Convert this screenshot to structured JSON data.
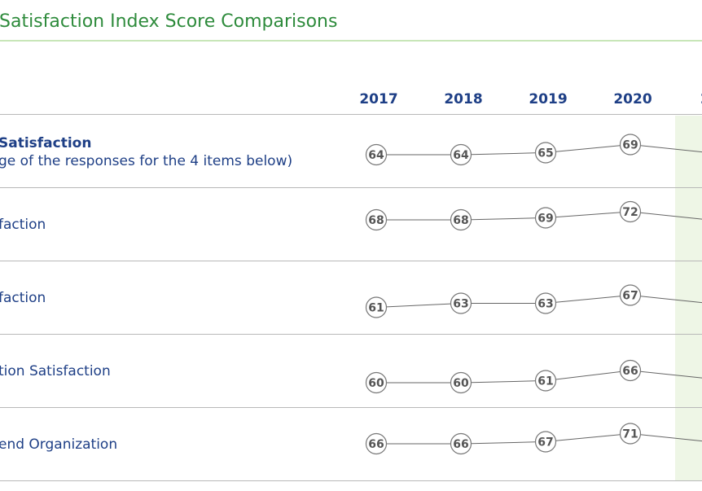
{
  "title": "Satisfaction Index Score Comparisons",
  "columns": [
    "2017",
    "2018",
    "2019",
    "2020",
    "2"
  ],
  "rows": [
    {
      "label": "Satisfaction",
      "sublabel": "ge of the responses for the 4 items below)"
    },
    {
      "label": "faction"
    },
    {
      "label": "faction"
    },
    {
      "label": "tion Satisfaction"
    },
    {
      "label": "end Organization"
    }
  ],
  "colors": {
    "title": "#2e8b3c",
    "label": "#1e3f86",
    "highlight": "#eef6e6",
    "node_text": "#555555"
  },
  "chart_data": {
    "type": "line",
    "title": "Satisfaction Index Score Comparisons",
    "x": [
      "2017",
      "2018",
      "2019",
      "2020"
    ],
    "y_range": [
      55,
      75
    ],
    "series": [
      {
        "name": "Satisfaction",
        "values": [
          64,
          64,
          65,
          69
        ]
      },
      {
        "name": "faction",
        "values": [
          68,
          68,
          69,
          72
        ]
      },
      {
        "name": "faction",
        "values": [
          61,
          63,
          63,
          67
        ]
      },
      {
        "name": "tion Satisfaction",
        "values": [
          60,
          60,
          61,
          66
        ]
      },
      {
        "name": "end Organization",
        "values": [
          66,
          66,
          67,
          71
        ]
      }
    ]
  }
}
